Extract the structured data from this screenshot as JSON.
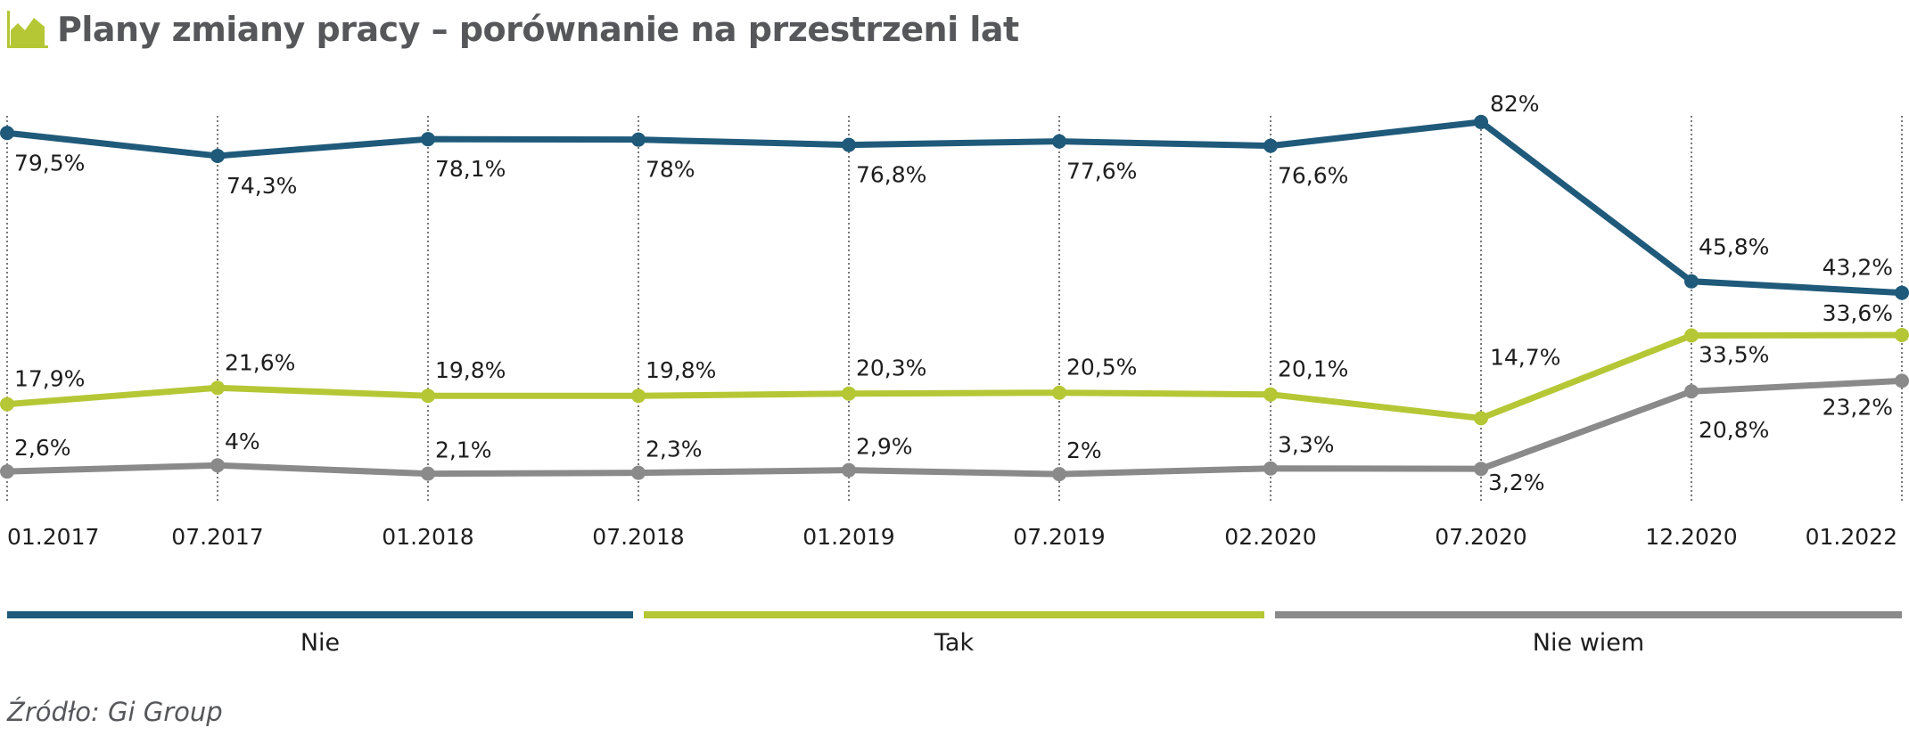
{
  "title": "Plany zmiany pracy – porównanie na przestrzeni lat",
  "source": "Źródło: Gi Group",
  "chart_data": {
    "type": "line",
    "title": "Plany zmiany pracy – porównanie na przestrzeni lat",
    "categories": [
      "01.2017",
      "07.2017",
      "01.2018",
      "07.2018",
      "01.2019",
      "07.2019",
      "02.2020",
      "07.2020",
      "12.2020",
      "01.2022"
    ],
    "series": [
      {
        "name": "Nie",
        "color": "#1f5a7a",
        "values": [
          79.5,
          74.3,
          78.1,
          78,
          76.8,
          77.6,
          76.6,
          82,
          45.8,
          43.2
        ],
        "labels": [
          "79,5%",
          "74,3%",
          "78,1%",
          "78%",
          "76,8%",
          "77,6%",
          "76,6%",
          "82%",
          "45,8%",
          "43,2%"
        ]
      },
      {
        "name": "Tak",
        "color": "#b5c735",
        "values": [
          17.9,
          21.6,
          19.8,
          19.8,
          20.3,
          20.5,
          20.1,
          14.7,
          33.5,
          33.6
        ],
        "labels": [
          "17,9%",
          "21,6%",
          "19,8%",
          "19,8%",
          "20,3%",
          "20,5%",
          "20,1%",
          "14,7%",
          "33,5%",
          "33,6%"
        ]
      },
      {
        "name": "Nie wiem",
        "color": "#8a8a8a",
        "values": [
          2.6,
          4,
          2.1,
          2.3,
          2.9,
          2,
          3.3,
          3.2,
          20.8,
          23.2
        ],
        "labels": [
          "2,6%",
          "4%",
          "2,1%",
          "2,3%",
          "2,9%",
          "2%",
          "3,3%",
          "3,2%",
          "20,8%",
          "23,2%"
        ]
      }
    ],
    "ylabel": "",
    "xlabel": "",
    "gridlines": "vertical-dotted",
    "legend_position": "bottom"
  }
}
